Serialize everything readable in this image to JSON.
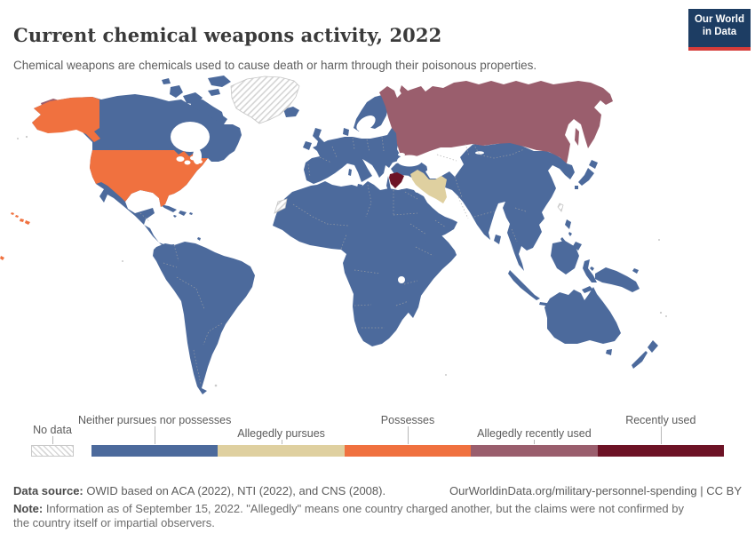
{
  "header": {
    "title": "Current chemical weapons activity, 2022",
    "subtitle": "Chemical weapons are chemicals used to cause death or harm through their poisonous properties.",
    "logo": {
      "line1": "Our World",
      "line2": "in Data"
    }
  },
  "legend": {
    "no_data_label": "No data",
    "categories": [
      {
        "label": "Neither pursues nor possesses",
        "color": "#4C6A9C",
        "row": "top"
      },
      {
        "label": "Allegedly pursues",
        "color": "#DFD0A0",
        "row": "bottom"
      },
      {
        "label": "Possesses",
        "color": "#F0713F",
        "row": "top"
      },
      {
        "label": "Allegedly recently used",
        "color": "#9A5E6D",
        "row": "bottom"
      },
      {
        "label": "Recently used",
        "color": "#6D1326",
        "row": "top"
      }
    ]
  },
  "map": {
    "ocean_color": "#ffffff",
    "border_color": "#a5a5a5",
    "regions": {
      "united_states": "Possesses",
      "russia": "Allegedly recently used",
      "iran": "Allegedly pursues",
      "syria": "Recently used",
      "greenland": "No data",
      "western_sahara": "No data",
      "taiwan": "No data",
      "rest_of_world": "Neither pursues nor possesses"
    }
  },
  "chart_data": {
    "type": "choropleth_map",
    "title": "Current chemical weapons activity, 2022",
    "categories": [
      "No data",
      "Neither pursues nor possesses",
      "Allegedly pursues",
      "Possesses",
      "Allegedly recently used",
      "Recently used"
    ],
    "colors": [
      "hatched",
      "#4C6A9C",
      "#DFD0A0",
      "#F0713F",
      "#9A5E6D",
      "#6D1326"
    ],
    "data": {
      "United States": "Possesses",
      "Russia": "Allegedly recently used",
      "Iran": "Allegedly pursues",
      "Syria": "Recently used",
      "Greenland": "No data",
      "Western Sahara": "No data",
      "Taiwan": "No data",
      "All other countries": "Neither pursues nor possesses"
    },
    "legend_position": "bottom"
  },
  "footer": {
    "source_label": "Data source:",
    "source_text": " OWID based on ACA (2022), NTI (2022), and CNS (2008).",
    "citation": "OurWorldinData.org/military-personnel-spending | CC BY",
    "note_label": "Note:",
    "note_text": " Information as of September 15, 2022. \"Allegedly\" means one country charged another, but the claims were not confirmed by the country itself or impartial observers."
  }
}
